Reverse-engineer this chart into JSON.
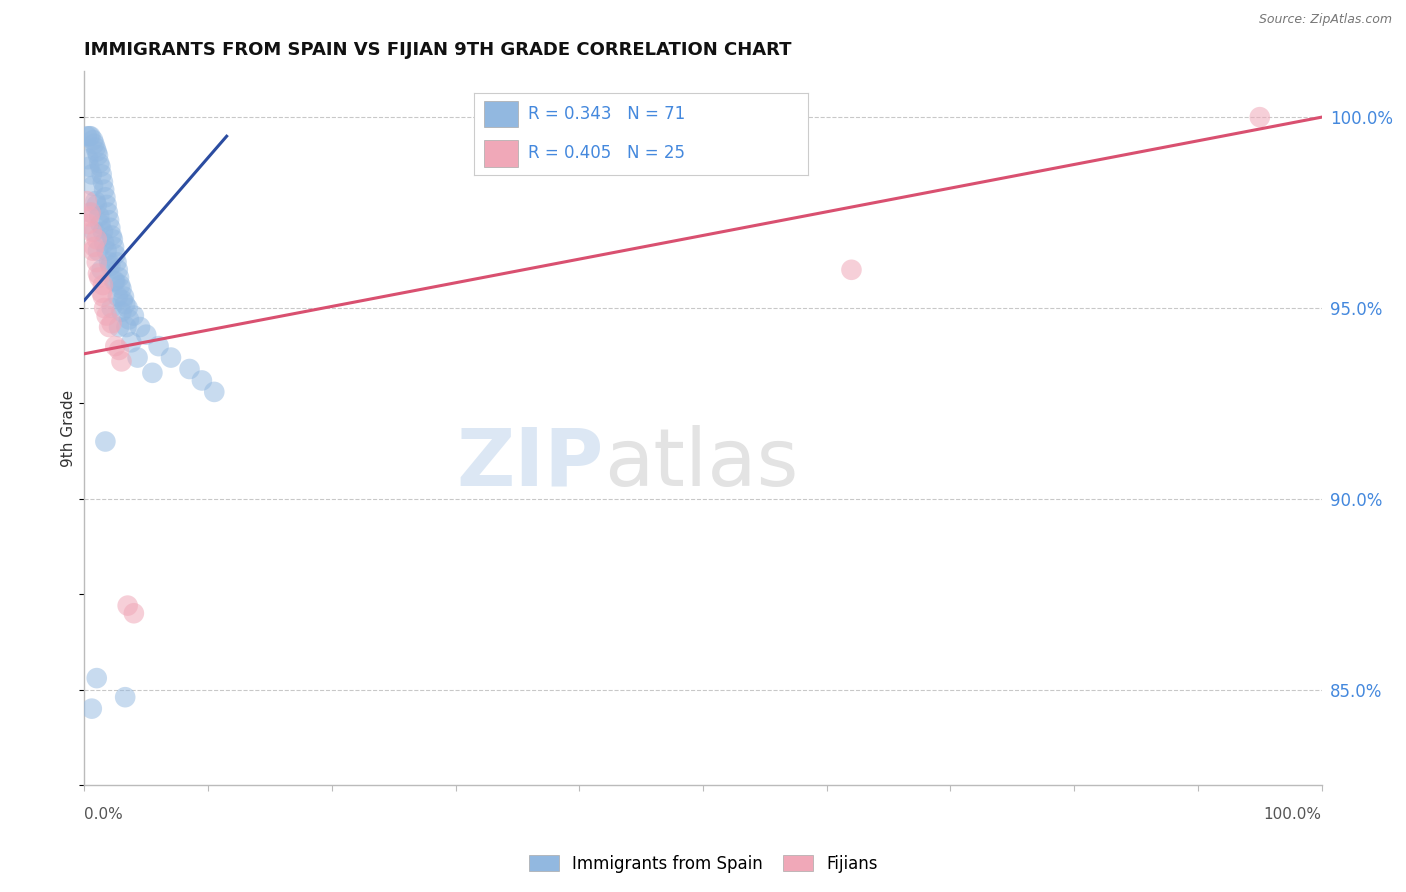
{
  "title": "IMMIGRANTS FROM SPAIN VS FIJIAN 9TH GRADE CORRELATION CHART",
  "source": "Source: ZipAtlas.com",
  "ylabel": "9th Grade",
  "xmin": 0.0,
  "xmax": 100.0,
  "ymin": 82.5,
  "ymax": 101.2,
  "blue_R": 0.343,
  "blue_N": 71,
  "pink_R": 0.405,
  "pink_N": 25,
  "blue_color": "#92b8e0",
  "pink_color": "#f0a8b8",
  "trend_blue_color": "#2b4ca0",
  "trend_pink_color": "#d95070",
  "right_yticks": [
    85.0,
    90.0,
    95.0,
    100.0
  ],
  "right_yticklabels": [
    "85.0%",
    "90.0%",
    "95.0%",
    "100.0%"
  ],
  "blue_scatter_x": [
    0.2,
    0.4,
    0.5,
    0.7,
    0.8,
    0.9,
    1.0,
    1.1,
    1.2,
    1.3,
    1.4,
    1.5,
    1.6,
    1.7,
    1.8,
    1.9,
    2.0,
    2.1,
    2.2,
    2.3,
    2.4,
    2.5,
    2.6,
    2.7,
    2.8,
    2.9,
    3.0,
    3.2,
    3.3,
    3.5,
    4.0,
    4.5,
    5.0,
    6.0,
    7.0,
    8.5,
    9.5,
    10.5,
    0.3,
    0.6,
    0.9,
    1.2,
    1.5,
    1.8,
    2.1,
    2.4,
    2.7,
    3.0,
    3.4,
    3.8,
    4.3,
    5.5,
    0.4,
    0.7,
    1.0,
    1.3,
    1.6,
    2.0,
    2.5,
    3.1,
    3.6,
    0.5,
    0.8,
    1.1,
    1.4,
    2.2,
    2.8,
    3.3,
    0.6,
    1.0,
    1.7
  ],
  "blue_scatter_y": [
    99.5,
    99.5,
    99.5,
    99.4,
    99.3,
    99.2,
    99.1,
    99.0,
    98.8,
    98.7,
    98.5,
    98.3,
    98.1,
    97.9,
    97.7,
    97.5,
    97.3,
    97.1,
    96.9,
    96.8,
    96.6,
    96.4,
    96.2,
    96.0,
    95.8,
    95.6,
    95.5,
    95.3,
    95.1,
    95.0,
    94.8,
    94.5,
    94.3,
    94.0,
    93.7,
    93.4,
    93.1,
    92.8,
    98.9,
    98.5,
    97.8,
    97.4,
    97.0,
    96.5,
    96.1,
    95.7,
    95.3,
    94.9,
    94.5,
    94.1,
    93.7,
    93.3,
    98.7,
    98.2,
    97.7,
    97.2,
    96.7,
    96.2,
    95.7,
    95.2,
    94.7,
    97.5,
    97.0,
    96.5,
    96.0,
    95.0,
    94.5,
    84.8,
    84.5,
    85.3,
    91.5
  ],
  "pink_scatter_x": [
    0.2,
    0.4,
    0.6,
    0.8,
    1.0,
    1.2,
    1.4,
    1.6,
    1.8,
    2.0,
    2.5,
    3.0,
    3.5,
    4.0,
    0.3,
    0.7,
    1.1,
    1.5,
    2.2,
    2.8,
    0.5,
    1.0,
    1.5,
    62.0,
    95.0
  ],
  "pink_scatter_y": [
    97.8,
    97.4,
    97.0,
    96.6,
    96.2,
    95.8,
    95.4,
    95.0,
    94.8,
    94.5,
    94.0,
    93.6,
    87.2,
    87.0,
    97.2,
    96.5,
    95.9,
    95.3,
    94.6,
    93.9,
    97.5,
    96.8,
    95.6,
    96.0,
    100.0
  ],
  "blue_trend_x": [
    0.0,
    11.5
  ],
  "blue_trend_y": [
    95.2,
    99.5
  ],
  "pink_trend_x": [
    0.0,
    100.0
  ],
  "pink_trend_y": [
    93.8,
    100.0
  ],
  "legend_text_color": "#4488dd",
  "grid_color": "#bbbbbb",
  "border_color": "#bbbbbb"
}
